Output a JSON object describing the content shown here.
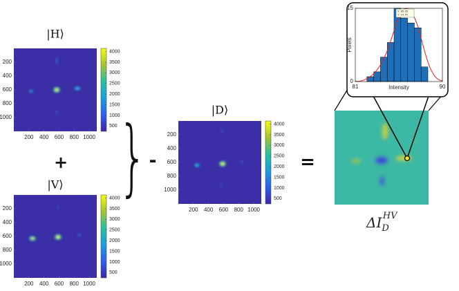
{
  "panels": [
    {
      "title": "|H⟩",
      "xticks": [
        200,
        400,
        600,
        800,
        1000
      ],
      "yticks": [
        200,
        400,
        600,
        800,
        1000
      ],
      "xlim": [
        0,
        1100
      ],
      "ylim": [
        0,
        1200
      ],
      "clim": [
        250,
        4150
      ],
      "cticks": [
        500,
        1000,
        1500,
        2000,
        2500,
        3000,
        3500,
        4000
      ]
    },
    {
      "title": "|V⟩",
      "xticks": [
        200,
        400,
        600,
        800,
        1000
      ],
      "yticks": [
        200,
        400,
        600,
        800,
        1000
      ],
      "xlim": [
        0,
        1100
      ],
      "ylim": [
        0,
        1200
      ],
      "clim": [
        250,
        4150
      ],
      "cticks": [
        500,
        1000,
        1500,
        2000,
        2500,
        3000,
        3500,
        4000
      ]
    },
    {
      "title": "|D⟩",
      "xticks": [
        200,
        400,
        600,
        800,
        1000
      ],
      "yticks": [
        200,
        400,
        600,
        800,
        1000
      ],
      "xlim": [
        0,
        1100
      ],
      "ylim": [
        0,
        1200
      ],
      "clim": [
        250,
        4150
      ],
      "cticks": [
        500,
        1000,
        1500,
        2000,
        2500,
        3000,
        3500,
        4000
      ]
    }
  ],
  "operators": {
    "plus": "+",
    "brace": "}",
    "minus": "-",
    "equals": "="
  },
  "result": {
    "symbol": "ΔI",
    "subscript": "D",
    "superscript": "HV"
  },
  "histogram": {
    "type": "histogram",
    "xlabel": "Intensity",
    "ylabel": "Pixels",
    "bins": [
      82.2,
      82.9,
      83.6,
      84.3,
      85.0,
      85.7,
      86.4,
      87.1,
      87.8,
      88.5
    ],
    "values": [
      1,
      2,
      5,
      8,
      15,
      13,
      12,
      11,
      3
    ],
    "color": "#1f6fb8",
    "xlim": [
      81,
      90
    ],
    "ylim": [
      0,
      15
    ],
    "xticks": [
      81,
      90
    ],
    "yticks": [
      0,
      15
    ],
    "annotation": [
      "X: 85.35",
      "Y: 14.75"
    ]
  }
}
